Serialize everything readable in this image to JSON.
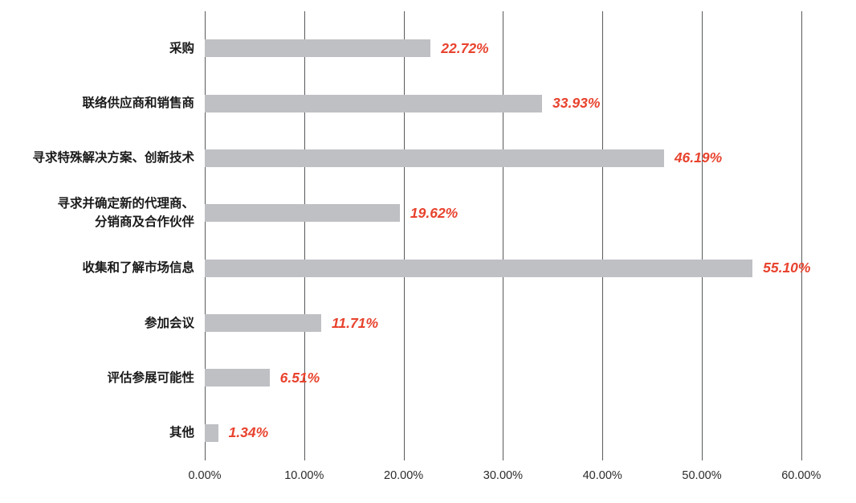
{
  "chart_data": {
    "type": "bar",
    "orientation": "horizontal",
    "title": "",
    "xlabel": "",
    "ylabel": "",
    "categories": [
      "采购",
      "联络供应商和销售商",
      "寻求特殊解决方案、创新技术",
      "寻求并确定新的代理商、\n分销商及合作伙伴",
      "收集和了解市场信息",
      "参加会议",
      "评估参展可能性",
      "其他"
    ],
    "values": [
      22.72,
      33.93,
      46.19,
      19.62,
      55.1,
      11.71,
      6.51,
      1.34
    ],
    "value_labels": [
      "22.72%",
      "33.93%",
      "46.19%",
      "19.62%",
      "55.10%",
      "11.71%",
      "6.51%",
      "1.34%"
    ],
    "x_ticks": [
      {
        "value": 0,
        "label": "0.00%"
      },
      {
        "value": 10,
        "label": "10.00%"
      },
      {
        "value": 20,
        "label": "20.00%"
      },
      {
        "value": 30,
        "label": "30.00%"
      },
      {
        "value": 40,
        "label": "40.00%"
      },
      {
        "value": 50,
        "label": "50.00%"
      },
      {
        "value": 60,
        "label": "60.00%"
      }
    ],
    "xlim": [
      0,
      60
    ],
    "grid": true,
    "legend_position": "none",
    "colors": {
      "bar": "#bfc0c4",
      "value_label": "#e8432e",
      "gridline": "#595a5c",
      "category_label": "#1a1a1a",
      "tick_label": "#2b2b2b",
      "background": "#ffffff"
    }
  }
}
